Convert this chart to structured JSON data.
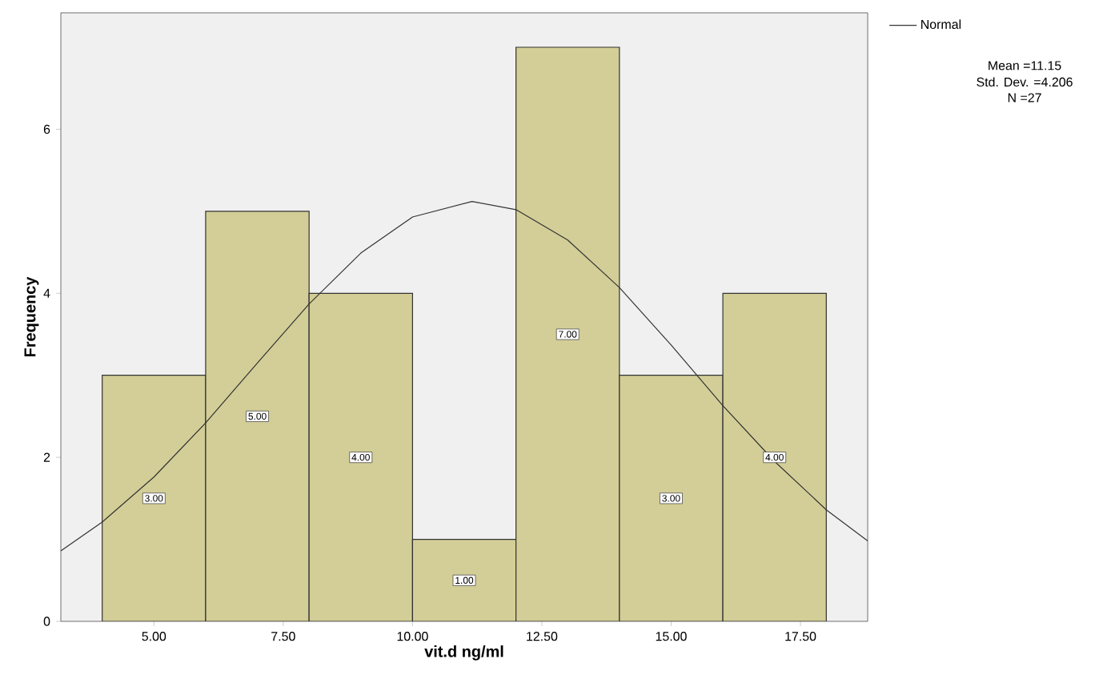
{
  "chart_data": {
    "type": "histogram",
    "xlabel": "vit.d ng/ml",
    "ylabel": "Frequency",
    "bins": [
      4,
      6,
      8,
      10,
      12,
      14,
      16,
      18
    ],
    "values": [
      3,
      5,
      4,
      1,
      7,
      3,
      4
    ],
    "value_labels": [
      "3.00",
      "5.00",
      "4.00",
      "1.00",
      "7.00",
      "3.00",
      "4.00"
    ],
    "color": "#d3ce97",
    "series": [
      {
        "name": "Normal",
        "type": "line",
        "color": "#333333",
        "x": [
          3.2,
          4,
          5,
          6,
          7,
          8,
          9,
          10,
          11.15,
          12,
          13,
          14,
          15,
          16,
          17,
          18,
          18.8
        ],
        "values": [
          0.86,
          1.21,
          1.76,
          2.42,
          3.15,
          3.87,
          4.49,
          4.93,
          5.12,
          5.02,
          4.65,
          4.07,
          3.37,
          2.63,
          1.95,
          1.36,
          0.98
        ]
      }
    ],
    "xlim": [
      3.2,
      18.8
    ],
    "ylim": [
      0,
      7.42
    ],
    "xticks": [
      {
        "value": 5,
        "label": "5.00"
      },
      {
        "value": 7.5,
        "label": "7.50"
      },
      {
        "value": 10,
        "label": "10.00"
      },
      {
        "value": 12.5,
        "label": "12.50"
      },
      {
        "value": 15,
        "label": "15.00"
      },
      {
        "value": 17.5,
        "label": "17.50"
      }
    ],
    "yticks": [
      0,
      2,
      4,
      6
    ],
    "legend": "top right",
    "grid": false,
    "annotations": [
      "Mean =11.15",
      "Std. Dev. =4.206",
      "N =27"
    ]
  }
}
